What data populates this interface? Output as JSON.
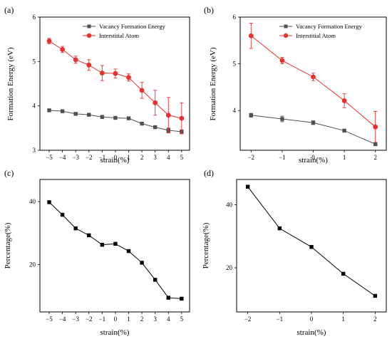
{
  "chart_data": [
    {
      "panel_label": "(a)",
      "type": "line",
      "xlabel": "strain(%)",
      "ylabel": "Formation Energy (eV)",
      "x": [
        -5,
        -4,
        -3,
        -2,
        -1,
        0,
        1,
        2,
        3,
        4,
        5
      ],
      "xticks": [
        -5,
        -4,
        -3,
        -2,
        -1,
        0,
        1,
        2,
        3,
        4,
        5
      ],
      "xlim": [
        -5.7,
        5.6
      ],
      "ylim": [
        3,
        6
      ],
      "yticks": [
        3,
        4,
        5,
        6
      ],
      "legend_position": "top-right",
      "series": [
        {
          "name": "Vacancy Formation Energy",
          "color": "#505050",
          "marker": "square",
          "values": [
            3.9,
            3.88,
            3.82,
            3.8,
            3.75,
            3.73,
            3.72,
            3.6,
            3.52,
            3.45,
            3.42
          ],
          "errors": [
            0.02,
            0.03,
            0.03,
            0.03,
            0.03,
            0.03,
            0.03,
            0.03,
            0.03,
            0.05,
            0.04
          ]
        },
        {
          "name": "Interstitial Atom",
          "color": "#e8302f",
          "marker": "circle",
          "values": [
            5.46,
            5.27,
            5.04,
            4.92,
            4.74,
            4.73,
            4.64,
            4.35,
            4.07,
            3.79,
            3.72
          ],
          "errors": [
            0.06,
            0.07,
            0.08,
            0.12,
            0.17,
            0.1,
            0.08,
            0.18,
            0.28,
            0.4,
            0.35
          ]
        }
      ]
    },
    {
      "panel_label": "(b)",
      "type": "line",
      "xlabel": "strain(%)",
      "ylabel": "Formation Energy (eV)",
      "x": [
        -2,
        -1,
        0,
        1,
        2
      ],
      "xticks": [
        -2,
        -1,
        0,
        1,
        2
      ],
      "xlim": [
        -2.35,
        2.35
      ],
      "ylim": [
        3.15,
        6.0
      ],
      "yticks": [
        4,
        5,
        6
      ],
      "legend_position": "top-right",
      "series": [
        {
          "name": "Vacancy Formation Energy",
          "color": "#505050",
          "marker": "square",
          "values": [
            3.9,
            3.82,
            3.74,
            3.57,
            3.28
          ],
          "errors": [
            0.04,
            0.06,
            0.04,
            0.03,
            0.03
          ]
        },
        {
          "name": "Interstitial Atom",
          "color": "#e8302f",
          "marker": "circle",
          "values": [
            5.6,
            5.07,
            4.72,
            4.21,
            3.65
          ],
          "errors": [
            0.27,
            0.07,
            0.08,
            0.15,
            0.33
          ]
        }
      ]
    },
    {
      "panel_label": "(c)",
      "type": "line",
      "xlabel": "strain(%)",
      "ylabel": "Percentage(%)",
      "x": [
        -5,
        -4,
        -3,
        -2,
        -1,
        0,
        1,
        2,
        3,
        4,
        5
      ],
      "xticks": [
        -5,
        -4,
        -3,
        -2,
        -1,
        0,
        1,
        2,
        3,
        4,
        5
      ],
      "xlim": [
        -5.7,
        5.6
      ],
      "ylim": [
        5,
        47
      ],
      "yticks": [
        20,
        40
      ],
      "series": [
        {
          "color": "#000000",
          "marker": "square",
          "values": [
            39.8,
            35.8,
            31.5,
            29.3,
            26.3,
            26.6,
            24.3,
            20.6,
            15.2,
            9.5,
            9.2
          ]
        }
      ]
    },
    {
      "panel_label": "(d)",
      "type": "line",
      "xlabel": "strain(%)",
      "ylabel": "Percentage(%)",
      "x": [
        -2,
        -1,
        0,
        1,
        2
      ],
      "xticks": [
        -2,
        -1,
        0,
        1,
        2
      ],
      "xlim": [
        -2.35,
        2.35
      ],
      "ylim": [
        6,
        48
      ],
      "yticks": [
        20,
        40
      ],
      "series": [
        {
          "color": "#000000",
          "marker": "square",
          "values": [
            45.7,
            32.5,
            26.6,
            18.1,
            11.1
          ]
        }
      ]
    }
  ]
}
